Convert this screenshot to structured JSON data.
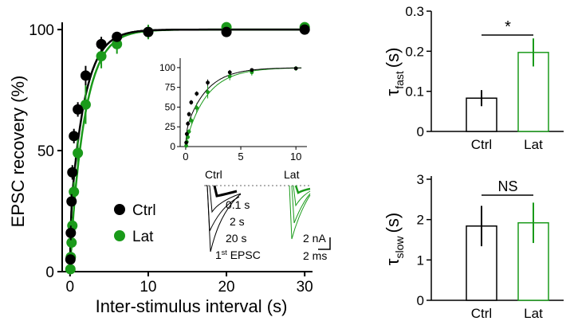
{
  "colors": {
    "ctrl": "#000000",
    "lat": "#1a9a1a",
    "axis": "#000000",
    "dots": "#999999"
  },
  "chart_data": [
    {
      "id": "main",
      "type": "scatter",
      "title": "",
      "xlabel": "Inter-stimulus interval (s)",
      "ylabel": "EPSC recovery (%)",
      "xlim": [
        -1,
        31
      ],
      "ylim": [
        0,
        103
      ],
      "xticks": [
        "0",
        "10",
        "20",
        "30"
      ],
      "yticks": [
        "0",
        "50",
        "100"
      ],
      "series": [
        {
          "name": "Ctrl",
          "x": [
            0.05,
            0.1,
            0.2,
            0.3,
            0.5,
            1,
            2,
            4,
            6,
            10,
            20,
            30
          ],
          "y": [
            5,
            16,
            29,
            41,
            56,
            67,
            81,
            94,
            97,
            99,
            99,
            100
          ],
          "err": [
            2,
            3,
            3,
            3,
            3,
            3,
            4,
            3,
            2,
            2,
            2,
            2
          ],
          "fit_tau_fast": 0.085,
          "fit_tau_slow": 1.85,
          "fit_frac_fast": 0.2
        },
        {
          "name": "Lat",
          "x": [
            0.05,
            0.1,
            0.2,
            0.3,
            0.5,
            1,
            2,
            4,
            6,
            10,
            20,
            30
          ],
          "y": [
            1,
            6,
            12,
            19,
            33,
            49,
            69,
            89,
            94,
            99,
            101,
            101
          ],
          "err": [
            2,
            2,
            3,
            3,
            4,
            6,
            8,
            5,
            4,
            3,
            2,
            2
          ],
          "fit_tau_fast": 0.2,
          "fit_tau_slow": 1.95,
          "fit_frac_fast": 0.05
        }
      ],
      "legend": [
        "Ctrl",
        "Lat"
      ]
    },
    {
      "id": "inset",
      "type": "line",
      "xlim": [
        -0.5,
        11
      ],
      "ylim": [
        0,
        112
      ],
      "xticks": [
        "0",
        "5",
        "10"
      ],
      "yticks": [
        "0",
        "25",
        "50",
        "75",
        "100"
      ]
    },
    {
      "id": "tau_fast",
      "type": "bar",
      "categories": [
        "Ctrl",
        "Lat"
      ],
      "values": [
        0.083,
        0.197
      ],
      "err": [
        0.02,
        0.035
      ],
      "ylabel": "τ",
      "ylabel_sub": "fast",
      "ylabel_unit": "(s)",
      "ylim": [
        0,
        0.3
      ],
      "yticks": [
        "0",
        "0.1",
        "0.2",
        "0.3"
      ],
      "significance": "*"
    },
    {
      "id": "tau_slow",
      "type": "bar",
      "categories": [
        "Ctrl",
        "Lat"
      ],
      "values": [
        1.84,
        1.92
      ],
      "err": [
        0.5,
        0.5
      ],
      "ylabel": "τ",
      "ylabel_sub": "slow",
      "ylabel_unit": "(s)",
      "ylim": [
        0,
        3
      ],
      "yticks": [
        "0",
        "1",
        "2",
        "3"
      ],
      "significance": "NS"
    }
  ],
  "traces": {
    "ctrl_label": "Ctrl",
    "lat_label": "Lat",
    "intervals": [
      "0.1 s",
      "2 s",
      "20 s"
    ],
    "first_epsc_sup": "st",
    "first_epsc_rest": " EPSC",
    "scale_y": "2 nA",
    "scale_x": "2 ms"
  }
}
